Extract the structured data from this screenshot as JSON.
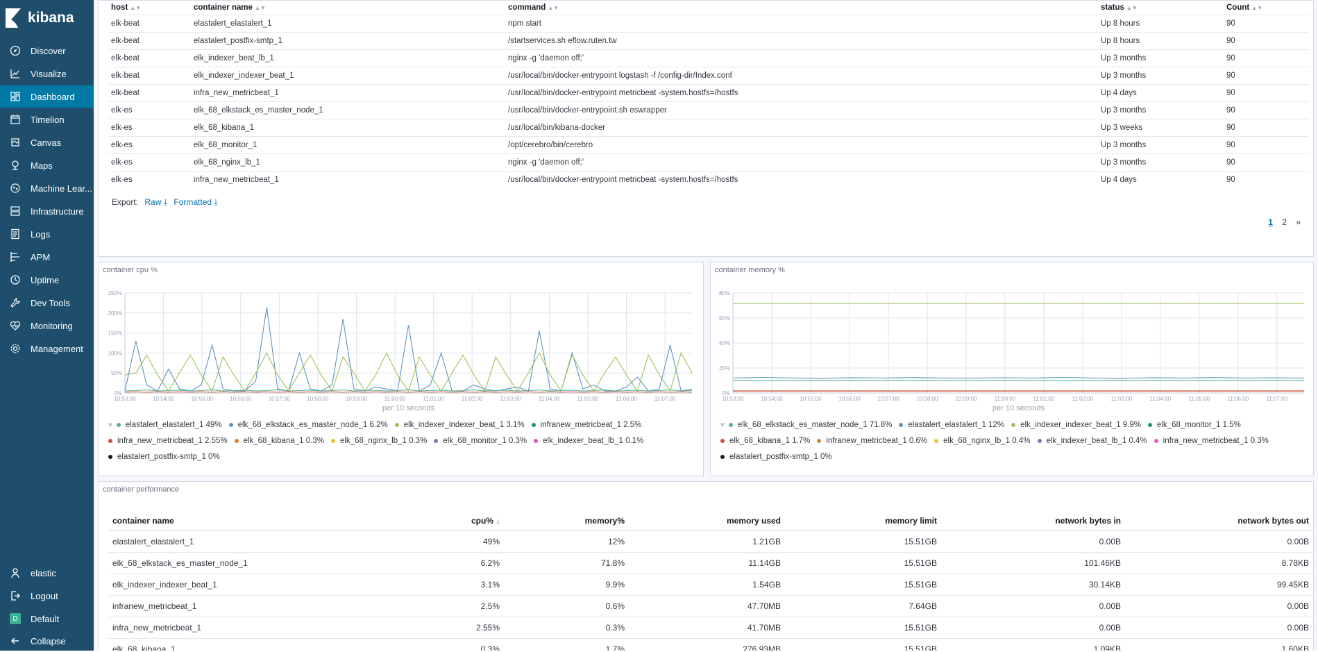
{
  "app": {
    "name": "kibana"
  },
  "sidebar": {
    "items": [
      {
        "label": "Discover",
        "icon": "compass-icon"
      },
      {
        "label": "Visualize",
        "icon": "visualize-icon"
      },
      {
        "label": "Dashboard",
        "icon": "dashboard-icon"
      },
      {
        "label": "Timelion",
        "icon": "timelion-icon"
      },
      {
        "label": "Canvas",
        "icon": "canvas-icon"
      },
      {
        "label": "Maps",
        "icon": "maps-icon"
      },
      {
        "label": "Machine Lear...",
        "icon": "machine-learning-icon"
      },
      {
        "label": "Infrastructure",
        "icon": "infrastructure-icon"
      },
      {
        "label": "Logs",
        "icon": "logs-icon"
      },
      {
        "label": "APM",
        "icon": "apm-icon"
      },
      {
        "label": "Uptime",
        "icon": "uptime-icon"
      },
      {
        "label": "Dev Tools",
        "icon": "wrench-icon"
      },
      {
        "label": "Monitoring",
        "icon": "heartbeat-icon"
      },
      {
        "label": "Management",
        "icon": "gear-icon"
      }
    ],
    "active": "Dashboard",
    "bottom": [
      {
        "label": "elastic",
        "icon": "user-icon"
      },
      {
        "label": "Logout",
        "icon": "logout-icon"
      },
      {
        "label": "Default",
        "icon": "space-avatar-icon",
        "avatar": "D"
      },
      {
        "label": "Collapse",
        "icon": "arrow-left-icon"
      }
    ]
  },
  "containers_table": {
    "headers": [
      "host",
      "container name",
      "command",
      "status",
      "Count"
    ],
    "rows": [
      [
        "elk-beat",
        "elastalert_elastalert_1",
        "npm start",
        "Up 8 hours",
        "90"
      ],
      [
        "elk-beat",
        "elastalert_postfix-smtp_1",
        "/startservices.sh eflow.ruten.tw",
        "Up 8 hours",
        "90"
      ],
      [
        "elk-beat",
        "elk_indexer_beat_lb_1",
        "nginx -g 'daemon off;'",
        "Up 3 months",
        "90"
      ],
      [
        "elk-beat",
        "elk_indexer_indexer_beat_1",
        "/usr/local/bin/docker-entrypoint logstash -f /config-dir/Index.conf",
        "Up 3 months",
        "90"
      ],
      [
        "elk-beat",
        "infra_new_metricbeat_1",
        "/usr/local/bin/docker-entrypoint metricbeat -system.hostfs=/hostfs",
        "Up 4 days",
        "90"
      ],
      [
        "elk-es",
        "elk_68_elkstack_es_master_node_1",
        "/usr/local/bin/docker-entrypoint.sh eswrapper",
        "Up 3 months",
        "90"
      ],
      [
        "elk-es",
        "elk_68_kibana_1",
        "/usr/local/bin/kibana-docker",
        "Up 3 weeks",
        "90"
      ],
      [
        "elk-es",
        "elk_68_monitor_1",
        "/opt/cerebro/bin/cerebro",
        "Up 3 months",
        "90"
      ],
      [
        "elk-es",
        "elk_68_nginx_lb_1",
        "nginx -g 'daemon off;'",
        "Up 3 months",
        "90"
      ],
      [
        "elk-es",
        "infra_new_metricbeat_1",
        "/usr/local/bin/docker-entrypoint metricbeat -system.hostfs=/hostfs",
        "Up 4 days",
        "90"
      ]
    ],
    "export_label": "Export:",
    "export_raw": "Raw",
    "export_formatted": "Formatted",
    "pages": [
      "1",
      "2",
      "»"
    ]
  },
  "chart_data": [
    {
      "type": "line",
      "title": "container cpu %",
      "xlabel": "per 10 seconds",
      "ylabel": "",
      "x_ticks": [
        "10:53:00",
        "10:54:00",
        "10:55:00",
        "10:56:00",
        "10:57:00",
        "10:58:00",
        "10:59:00",
        "11:00:00",
        "11:01:00",
        "11:02:00",
        "11:03:00",
        "11:04:00",
        "11:05:00",
        "11:06:00",
        "11:07:00"
      ],
      "y_ticks": [
        "0%",
        "50%",
        "100%",
        "150%",
        "200%",
        "250%"
      ],
      "ylim": [
        0,
        250
      ],
      "grid": true,
      "series": [
        {
          "name": "elastalert_elastalert_1",
          "color": "#6092c0",
          "values": [
            5,
            130,
            20,
            5,
            60,
            10,
            5,
            20,
            120,
            10,
            5,
            5,
            30,
            215,
            10,
            5,
            100,
            10,
            5,
            20,
            185,
            10,
            5,
            15,
            10,
            5,
            170,
            5,
            20,
            100,
            5,
            5,
            20,
            10,
            5,
            10,
            15,
            5,
            155,
            10,
            5,
            100,
            10,
            20,
            5,
            5,
            15,
            40,
            5,
            10,
            120,
            5,
            10
          ]
        },
        {
          "name": "elk_indexer_indexer_beat_1",
          "color": "#9bc25c",
          "values": [
            45,
            50,
            95,
            45,
            5,
            50,
            95,
            45,
            5,
            90,
            45,
            5,
            50,
            100,
            45,
            5,
            50,
            95,
            45,
            5,
            90,
            50,
            5,
            45,
            100,
            45,
            5,
            90,
            45,
            5,
            50,
            95,
            45,
            5,
            90,
            45,
            5,
            50,
            100,
            45,
            5,
            95,
            45,
            5,
            50,
            90,
            45,
            5,
            95,
            45,
            5,
            100,
            50
          ]
        },
        {
          "name": "elk_68_elkstack_es_master_node_1",
          "color": "#54b399",
          "values": [
            5,
            6,
            8,
            5,
            6,
            7,
            5,
            6,
            8,
            5,
            6,
            7,
            5,
            6,
            8,
            5,
            6,
            7,
            5,
            6,
            8,
            5,
            6,
            7,
            5,
            6,
            8,
            5,
            6,
            7,
            5,
            6,
            8,
            5,
            6,
            7,
            5,
            6,
            8,
            5,
            6,
            7,
            5,
            6,
            8,
            5,
            6,
            7,
            5,
            6,
            8,
            5,
            6
          ]
        },
        {
          "name": "infra_new_metricbeat_1",
          "color": "#e7664c",
          "values": [
            2,
            3,
            2,
            3,
            2,
            3,
            2,
            3,
            2,
            3,
            2,
            3,
            2,
            3,
            2,
            3,
            2,
            3,
            2,
            3,
            2,
            3,
            2,
            3,
            2,
            3,
            2,
            3,
            2,
            3,
            2,
            3,
            2,
            3,
            2,
            3,
            2,
            3,
            2,
            3,
            2,
            3,
            2,
            3,
            2,
            3,
            2,
            3,
            2,
            3,
            2,
            3,
            2
          ]
        }
      ],
      "legend": [
        {
          "label": "elastalert_elastalert_1",
          "value": "49%",
          "color": "#54b399"
        },
        {
          "label": "elk_68_elkstack_es_master_node_1",
          "value": "6.2%",
          "color": "#6092c0"
        },
        {
          "label": "elk_indexer_indexer_beat_1",
          "value": "3.1%",
          "color": "#9bc25c"
        },
        {
          "label": "infranew_metricbeat_1",
          "value": "2.5%",
          "color": "#209280"
        },
        {
          "label": "infra_new_metricbeat_1",
          "value": "2.55%",
          "color": "#cc4e3a"
        },
        {
          "label": "elk_68_kibana_1",
          "value": "0.3%",
          "color": "#d6843b"
        },
        {
          "label": "elk_68_nginx_lb_1",
          "value": "0.3%",
          "color": "#eec33e"
        },
        {
          "label": "elk_68_monitor_1",
          "value": "0.3%",
          "color": "#9170b8"
        },
        {
          "label": "elk_indexer_beat_lb_1",
          "value": "0.1%",
          "color": "#e35ab9"
        },
        {
          "label": "elastalert_postfix-smtp_1",
          "value": "0%",
          "color": "#1a1c21"
        }
      ]
    },
    {
      "type": "line",
      "title": "container memory %",
      "xlabel": "per 10 seconds",
      "ylabel": "",
      "x_ticks": [
        "10:53:00",
        "10:54:00",
        "10:55:00",
        "10:56:00",
        "10:57:00",
        "10:58:00",
        "10:59:00",
        "11:00:00",
        "11:01:00",
        "11:02:00",
        "11:03:00",
        "11:04:00",
        "11:05:00",
        "11:06:00",
        "11:07:00"
      ],
      "y_ticks": [
        "0%",
        "20%",
        "40%",
        "60%",
        "80%"
      ],
      "ylim": [
        0,
        80
      ],
      "grid": true,
      "series": [
        {
          "name": "elk_68_elkstack_es_master_node_1",
          "color": "#9bc25c",
          "values": [
            71.8,
            71.8,
            71.8,
            71.8,
            71.8,
            71.8,
            71.8,
            71.8,
            71.8,
            71.8,
            71.8,
            71.8,
            71.8,
            71.8,
            71.8,
            71.8,
            71.8,
            71.8,
            71.8,
            71.8
          ]
        },
        {
          "name": "elastalert_elastalert_1",
          "color": "#6092c0",
          "values": [
            12,
            12.5,
            12,
            11.8,
            12.3,
            12,
            12.4,
            12,
            11.9,
            12.2,
            12,
            12.5,
            12,
            11.8,
            12.3,
            12,
            12.4,
            12,
            12.1,
            12
          ]
        },
        {
          "name": "elk_indexer_indexer_beat_1",
          "color": "#54b399",
          "values": [
            9.9,
            9.9,
            9.9,
            9.9,
            9.9,
            9.9,
            9.9,
            9.9,
            9.9,
            9.9,
            9.9,
            9.9,
            9.9,
            9.9,
            9.9,
            9.9,
            9.9,
            9.9,
            9.9,
            9.9
          ]
        },
        {
          "name": "elk_68_monitor_1",
          "color": "#d6843b",
          "values": [
            1.5,
            1.5,
            1.5,
            1.5,
            1.5,
            1.5,
            1.5,
            1.5,
            1.5,
            1.5,
            1.5,
            1.5,
            1.5,
            1.5,
            1.5,
            1.5,
            1.5,
            1.5,
            1.5,
            1.5
          ]
        },
        {
          "name": "elk_68_kibana_1",
          "color": "#cc4e3a",
          "values": [
            1.7,
            1.7,
            1.7,
            1.7,
            1.7,
            1.7,
            1.7,
            1.7,
            1.7,
            1.7,
            1.7,
            1.7,
            1.7,
            1.7,
            1.7,
            1.7,
            1.7,
            1.7,
            1.7,
            1.7
          ]
        }
      ],
      "legend": [
        {
          "label": "elk_68_elkstack_es_master_node_1",
          "value": "71.8%",
          "color": "#54b399"
        },
        {
          "label": "elastalert_elastalert_1",
          "value": "12%",
          "color": "#6092c0"
        },
        {
          "label": "elk_indexer_indexer_beat_1",
          "value": "9.9%",
          "color": "#9bc25c"
        },
        {
          "label": "elk_68_monitor_1",
          "value": "1.5%",
          "color": "#209280"
        },
        {
          "label": "elk_68_kibana_1",
          "value": "1.7%",
          "color": "#cc4e3a"
        },
        {
          "label": "infranew_metricbeat_1",
          "value": "0.6%",
          "color": "#d6843b"
        },
        {
          "label": "elk_68_nginx_lb_1",
          "value": "0.4%",
          "color": "#eec33e"
        },
        {
          "label": "elk_indexer_beat_lb_1",
          "value": "0.4%",
          "color": "#9170b8"
        },
        {
          "label": "infra_new_metricbeat_1",
          "value": "0.3%",
          "color": "#e35ab9"
        },
        {
          "label": "elastalert_postfix-smtp_1",
          "value": "0%",
          "color": "#1a1c21"
        }
      ]
    }
  ],
  "performance": {
    "title": "container performance",
    "headers": [
      "container name",
      "cpu%",
      "memory%",
      "memory used",
      "memory limit",
      "network bytes in",
      "network bytes out"
    ],
    "sort_icon": "arrow-down-icon",
    "rows": [
      [
        "elastalert_elastalert_1",
        "49%",
        "12%",
        "1.21GB",
        "15.51GB",
        "0.00B",
        "0.00B"
      ],
      [
        "elk_68_elkstack_es_master_node_1",
        "6.2%",
        "71.8%",
        "11.14GB",
        "15.51GB",
        "101.46KB",
        "8.78KB"
      ],
      [
        "elk_indexer_indexer_beat_1",
        "3.1%",
        "9.9%",
        "1.54GB",
        "15.51GB",
        "30.14KB",
        "99.45KB"
      ],
      [
        "infranew_metricbeat_1",
        "2.5%",
        "0.6%",
        "47.70MB",
        "7.64GB",
        "0.00B",
        "0.00B"
      ],
      [
        "infra_new_metricbeat_1",
        "2.55%",
        "0.3%",
        "41.70MB",
        "15.51GB",
        "0.00B",
        "0.00B"
      ],
      [
        "elk_68_kibana_1",
        "0.3%",
        "1.7%",
        "276.93MB",
        "15.51GB",
        "1.09KB",
        "1.60KB"
      ]
    ]
  }
}
